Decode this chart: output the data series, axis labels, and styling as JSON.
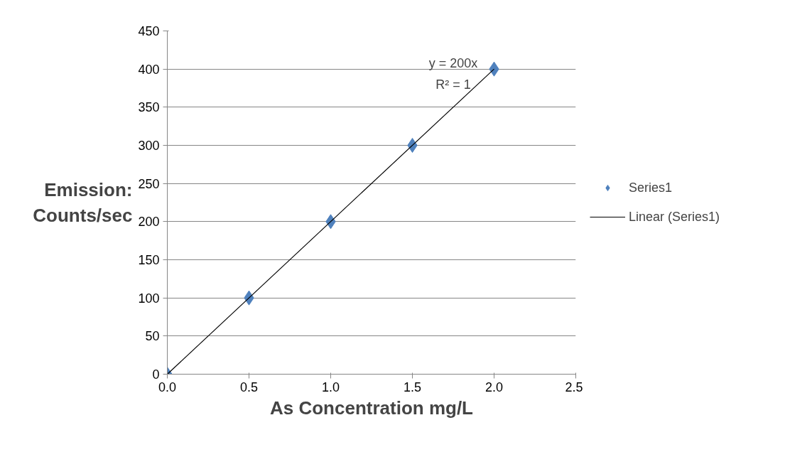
{
  "chart_data": {
    "type": "scatter",
    "xlabel": "As Concentration mg/L",
    "ylabel": "Emission: Counts/sec",
    "x": [
      0,
      0.5,
      1,
      1.5,
      2
    ],
    "series": [
      {
        "name": "Series1",
        "color": "#4f81bd",
        "values": [
          0,
          100,
          200,
          300,
          400
        ],
        "marker": "diamond"
      },
      {
        "name": "Linear (Series1)",
        "type": "line",
        "color": "#000000",
        "x": [
          0,
          2
        ],
        "values": [
          0,
          400
        ],
        "marker": "none"
      }
    ],
    "xlim": [
      0,
      2.5
    ],
    "xticks": [
      {
        "value": 0,
        "label": "0.0"
      },
      {
        "value": 0.5,
        "label": "0.5"
      },
      {
        "value": 1,
        "label": "1.0"
      },
      {
        "value": 1.5,
        "label": "1.5"
      },
      {
        "value": 2,
        "label": "2.0"
      },
      {
        "value": 2.5,
        "label": "2.5"
      }
    ],
    "ylim": [
      0,
      450
    ],
    "yticks": [
      0,
      50,
      100,
      150,
      200,
      250,
      300,
      350,
      400,
      450
    ],
    "grid": "y",
    "legend": "right",
    "annotations": [
      "y = 200x",
      "R² = 1"
    ]
  }
}
